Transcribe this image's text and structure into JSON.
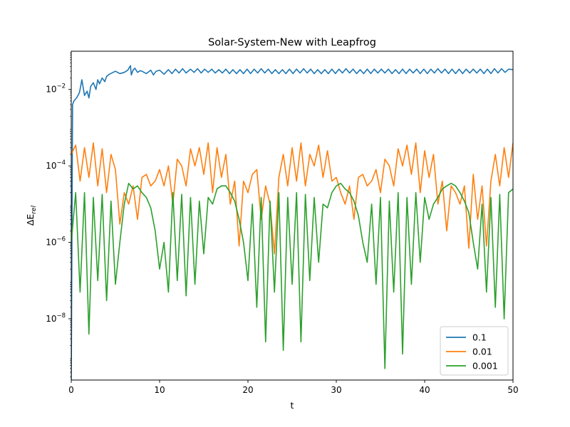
{
  "chart_data": {
    "type": "line",
    "title": "Solar-System-New with Leapfrog",
    "xlabel": "t",
    "ylabel": "ΔE",
    "ylabel_subscript": "rel",
    "xlim": [
      0,
      50
    ],
    "ylim": [
      2.5e-10,
      0.1
    ],
    "yscale": "log",
    "grid": false,
    "legend_position": "lower right",
    "x_ticks": [
      0,
      10,
      20,
      30,
      40,
      50
    ],
    "x_tick_labels": [
      "0",
      "10",
      "20",
      "30",
      "40",
      "50"
    ],
    "y_ticks": [
      1e-08,
      1e-06,
      0.0001,
      0.01
    ],
    "y_tick_labels": [
      {
        "base": "10",
        "exp": "−8"
      },
      {
        "base": "10",
        "exp": "−6"
      },
      {
        "base": "10",
        "exp": "−4"
      },
      {
        "base": "10",
        "exp": "−2"
      }
    ],
    "series": [
      {
        "name": "0.1",
        "color": "#1f77b4",
        "x": [
          0,
          0.15,
          0.3,
          0.6,
          0.9,
          1.0,
          1.2,
          1.5,
          1.8,
          2.0,
          2.2,
          2.5,
          2.8,
          3.0,
          3.2,
          3.5,
          3.8,
          4.0,
          4.3,
          4.6,
          5.0,
          5.5,
          6.0,
          6.4,
          6.7,
          6.8,
          7.0,
          7.2,
          7.5,
          7.8,
          8.0,
          8.5,
          9.0,
          9.3,
          9.6,
          10.0,
          10.5,
          11.0,
          11.4,
          11.8,
          12.2,
          12.6,
          13.0,
          13.5,
          13.9,
          14.3,
          14.7,
          15.1,
          15.5,
          15.9,
          16.3,
          16.7,
          17.1,
          17.5,
          17.9,
          18.3,
          18.7,
          19.1,
          19.5,
          19.9,
          20.3,
          20.7,
          21.1,
          21.5,
          21.9,
          22.3,
          22.7,
          23.1,
          23.5,
          23.9,
          24.3,
          24.7,
          25.1,
          25.5,
          25.9,
          26.3,
          26.7,
          27.1,
          27.5,
          27.9,
          28.3,
          28.7,
          29.1,
          29.5,
          29.9,
          30.3,
          30.7,
          31.1,
          31.5,
          31.9,
          32.3,
          32.7,
          33.1,
          33.5,
          33.9,
          34.3,
          34.7,
          35.1,
          35.5,
          35.9,
          36.3,
          36.7,
          37.1,
          37.5,
          37.9,
          38.3,
          38.7,
          39.1,
          39.5,
          39.9,
          40.3,
          40.7,
          41.1,
          41.5,
          41.9,
          42.3,
          42.7,
          43.1,
          43.5,
          43.9,
          44.3,
          44.7,
          45.1,
          45.5,
          45.9,
          46.3,
          46.7,
          47.1,
          47.5,
          47.9,
          48.3,
          48.7,
          49.1,
          49.5,
          50.0
        ],
        "y": [
          2e-10,
          0.004,
          0.005,
          0.006,
          0.008,
          0.01,
          0.018,
          0.007,
          0.009,
          0.006,
          0.012,
          0.015,
          0.01,
          0.018,
          0.014,
          0.02,
          0.016,
          0.022,
          0.025,
          0.027,
          0.03,
          0.026,
          0.028,
          0.032,
          0.042,
          0.024,
          0.032,
          0.036,
          0.028,
          0.031,
          0.03,
          0.026,
          0.032,
          0.024,
          0.03,
          0.032,
          0.025,
          0.033,
          0.026,
          0.034,
          0.027,
          0.035,
          0.027,
          0.034,
          0.028,
          0.035,
          0.027,
          0.034,
          0.028,
          0.034,
          0.027,
          0.033,
          0.027,
          0.034,
          0.026,
          0.033,
          0.026,
          0.033,
          0.026,
          0.034,
          0.026,
          0.034,
          0.027,
          0.035,
          0.027,
          0.034,
          0.026,
          0.033,
          0.026,
          0.033,
          0.026,
          0.034,
          0.026,
          0.034,
          0.027,
          0.035,
          0.027,
          0.034,
          0.026,
          0.033,
          0.026,
          0.033,
          0.026,
          0.034,
          0.026,
          0.034,
          0.027,
          0.035,
          0.027,
          0.034,
          0.026,
          0.033,
          0.026,
          0.034,
          0.026,
          0.034,
          0.027,
          0.034,
          0.027,
          0.034,
          0.026,
          0.033,
          0.026,
          0.034,
          0.026,
          0.034,
          0.027,
          0.034,
          0.026,
          0.034,
          0.026,
          0.034,
          0.027,
          0.035,
          0.027,
          0.034,
          0.026,
          0.034,
          0.026,
          0.034,
          0.026,
          0.034,
          0.027,
          0.034,
          0.027,
          0.034,
          0.026,
          0.034,
          0.026,
          0.035,
          0.027,
          0.035,
          0.028,
          0.034,
          0.033
        ]
      },
      {
        "name": "0.01",
        "color": "#ff7f0e",
        "x": [
          0,
          0.5,
          1.0,
          1.5,
          2.0,
          2.5,
          3.0,
          3.5,
          4.0,
          4.5,
          5.0,
          5.5,
          6.0,
          6.5,
          7.0,
          7.5,
          8.0,
          8.5,
          9.0,
          9.5,
          10.0,
          10.5,
          11.0,
          11.5,
          12.0,
          12.5,
          13.0,
          13.5,
          14.0,
          14.5,
          15.0,
          15.5,
          16.0,
          16.5,
          17.0,
          17.5,
          18.0,
          18.5,
          19.0,
          19.5,
          20.0,
          20.5,
          21.0,
          21.5,
          22.0,
          22.5,
          23.0,
          23.5,
          24.0,
          24.5,
          25.0,
          25.5,
          26.0,
          26.5,
          27.0,
          27.5,
          28.0,
          28.5,
          29.0,
          29.5,
          30.0,
          30.5,
          31.0,
          31.5,
          32.0,
          32.5,
          33.0,
          33.5,
          34.0,
          34.5,
          35.0,
          35.5,
          36.0,
          36.5,
          37.0,
          37.5,
          38.0,
          38.5,
          39.0,
          39.5,
          40.0,
          40.5,
          41.0,
          41.5,
          42.0,
          42.5,
          43.0,
          43.5,
          44.0,
          44.5,
          45.0,
          45.5,
          46.0,
          46.5,
          47.0,
          47.5,
          48.0,
          48.5,
          49.0,
          49.5,
          50.0
        ],
        "y": [
          0.0002,
          0.00035,
          4e-05,
          0.0003,
          5e-05,
          0.0004,
          3e-05,
          0.00028,
          2e-05,
          0.0002,
          8e-05,
          3e-06,
          2e-05,
          1e-05,
          3e-05,
          4e-06,
          5e-05,
          6e-05,
          3e-05,
          4e-05,
          8e-05,
          3e-05,
          0.0001,
          1e-05,
          0.00015,
          0.0001,
          3e-05,
          0.00028,
          0.0001,
          0.0003,
          6e-05,
          0.0004,
          2e-05,
          0.0003,
          5e-05,
          0.0002,
          1e-05,
          4e-05,
          8e-07,
          4e-05,
          2e-05,
          6e-05,
          8e-05,
          4e-06,
          3e-05,
          1e-05,
          5e-07,
          5e-05,
          0.0002,
          3e-05,
          0.0003,
          4e-05,
          0.0004,
          3e-05,
          0.0002,
          0.0001,
          0.00035,
          5e-05,
          0.00025,
          4e-05,
          5e-05,
          2e-05,
          1e-05,
          3e-05,
          4e-06,
          5e-05,
          6e-05,
          3e-05,
          4e-05,
          8e-05,
          2e-05,
          0.00015,
          0.0001,
          3e-05,
          0.00028,
          0.0001,
          0.00035,
          6e-05,
          0.0004,
          2e-05,
          0.00025,
          5e-05,
          0.0002,
          1e-05,
          4e-05,
          2e-06,
          3e-05,
          2e-05,
          1e-05,
          3e-05,
          7e-07,
          6e-05,
          4e-06,
          3e-05,
          8e-07,
          4e-05,
          0.0002,
          3e-05,
          0.0003,
          5e-05,
          0.0004
        ]
      },
      {
        "name": "0.001",
        "color": "#2ca02c",
        "x": [
          0,
          0.5,
          1.0,
          1.5,
          2.0,
          2.5,
          3.0,
          3.5,
          4.0,
          4.5,
          5.0,
          5.5,
          6.0,
          6.5,
          7.0,
          7.5,
          8.0,
          8.5,
          9.0,
          9.5,
          10.0,
          10.5,
          11.0,
          11.5,
          12.0,
          12.5,
          13.0,
          13.5,
          14.0,
          14.5,
          15.0,
          15.5,
          16.0,
          16.5,
          17.0,
          17.5,
          18.0,
          18.5,
          19.0,
          19.5,
          20.0,
          20.5,
          21.0,
          21.5,
          22.0,
          22.5,
          23.0,
          23.5,
          24.0,
          24.5,
          25.0,
          25.5,
          26.0,
          26.5,
          27.0,
          27.5,
          28.0,
          28.5,
          29.0,
          29.5,
          30.0,
          30.5,
          31.0,
          31.5,
          32.0,
          32.5,
          33.0,
          33.5,
          34.0,
          34.5,
          35.0,
          35.5,
          36.0,
          36.5,
          37.0,
          37.5,
          38.0,
          38.5,
          39.0,
          39.5,
          40.0,
          40.5,
          41.0,
          41.5,
          42.0,
          42.5,
          43.0,
          43.5,
          44.0,
          44.5,
          45.0,
          45.5,
          46.0,
          46.5,
          47.0,
          47.5,
          48.0,
          48.5,
          49.0,
          49.5,
          50.0
        ],
        "y": [
          1e-06,
          2e-05,
          5e-08,
          2e-05,
          4e-09,
          1.5e-05,
          1e-07,
          1.8e-05,
          3e-08,
          1.2e-05,
          8e-08,
          1e-06,
          1e-05,
          3.5e-05,
          2.5e-05,
          3e-05,
          2e-05,
          1.5e-05,
          8e-06,
          2e-06,
          2e-07,
          1e-06,
          5e-08,
          2e-05,
          1e-07,
          1.8e-05,
          4e-08,
          1.5e-05,
          8e-08,
          1.2e-05,
          5e-07,
          1.5e-05,
          1e-05,
          2.5e-05,
          3e-05,
          3e-05,
          2e-05,
          1.2e-05,
          4e-06,
          1e-06,
          1e-07,
          1e-05,
          2e-08,
          1.5e-05,
          2.5e-09,
          1.2e-05,
          5e-08,
          2e-05,
          1.5e-09,
          1.5e-05,
          8e-08,
          2e-05,
          2.5e-09,
          1.8e-05,
          1e-07,
          1.5e-05,
          3e-07,
          1e-05,
          8e-06,
          2e-05,
          3e-05,
          3.5e-05,
          2.5e-05,
          2e-05,
          1.2e-05,
          5e-06,
          1e-06,
          3e-07,
          1e-05,
          8e-08,
          1.5e-05,
          5e-10,
          1.2e-05,
          5e-08,
          2e-05,
          1.2e-09,
          1.5e-05,
          8e-08,
          2e-05,
          3e-07,
          1.5e-05,
          4e-06,
          1e-05,
          1.5e-05,
          2.5e-05,
          3e-05,
          3.5e-05,
          3e-05,
          2e-05,
          1.2e-05,
          6e-06,
          1e-06,
          2e-07,
          1e-05,
          5e-08,
          1.5e-05,
          2e-08,
          1.8e-05,
          1e-08,
          2e-05,
          2.5e-05
        ]
      }
    ]
  }
}
